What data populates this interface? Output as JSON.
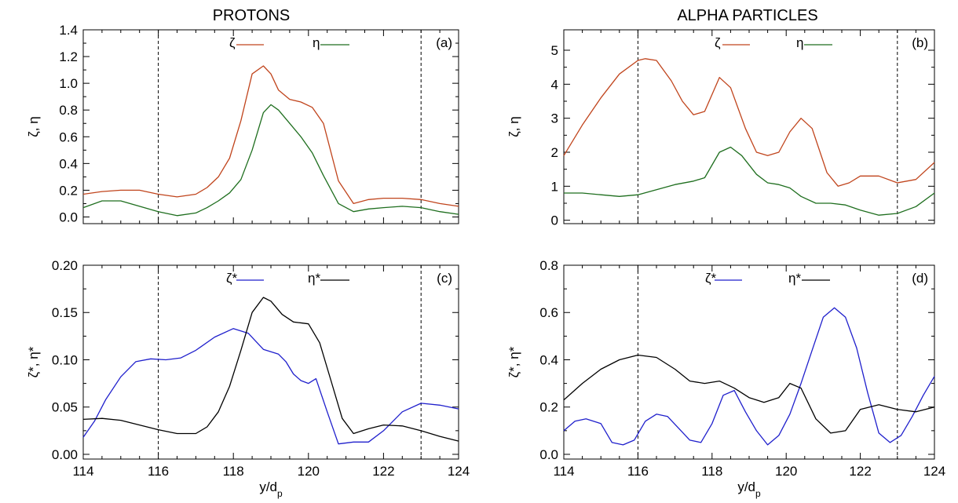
{
  "column_titles": {
    "left": "PROTONS",
    "right": "ALPHA PARTICLES"
  },
  "colors": {
    "zeta": "#c0441c",
    "eta": "#1e6e1e",
    "zeta_star": "#1f1fcc",
    "eta_star": "#000000"
  },
  "chart_data": [
    {
      "id": "a",
      "type": "line",
      "panel_label": "(a)",
      "ylabel": "ζ, η",
      "xlabel": "",
      "xlim": [
        114,
        124
      ],
      "ylim": [
        -0.05,
        1.4
      ],
      "yticks": [
        0.0,
        0.2,
        0.4,
        0.6,
        0.8,
        1.0,
        1.2,
        1.4
      ],
      "ytick_labels": [
        "0.0",
        "0.2",
        "0.4",
        "0.6",
        "0.8",
        "1.0",
        "1.2",
        "1.4"
      ],
      "xticks": [
        114,
        116,
        118,
        120,
        122,
        124
      ],
      "xtick_labels": [],
      "vlines": [
        116,
        123
      ],
      "grid": false,
      "legend": {
        "position": "top-center"
      },
      "series": [
        {
          "name": "ζ",
          "color": "#c0441c",
          "x": [
            114,
            114.5,
            115,
            115.5,
            116,
            116.5,
            117,
            117.3,
            117.6,
            117.9,
            118.2,
            118.5,
            118.8,
            119.0,
            119.2,
            119.5,
            119.8,
            120.1,
            120.4,
            120.8,
            121.2,
            121.6,
            122.0,
            122.5,
            123,
            123.5,
            124
          ],
          "y": [
            0.17,
            0.19,
            0.2,
            0.2,
            0.17,
            0.15,
            0.17,
            0.22,
            0.3,
            0.44,
            0.72,
            1.07,
            1.13,
            1.07,
            0.95,
            0.88,
            0.86,
            0.82,
            0.7,
            0.27,
            0.1,
            0.13,
            0.14,
            0.14,
            0.13,
            0.1,
            0.08
          ]
        },
        {
          "name": "η",
          "color": "#1e6e1e",
          "x": [
            114,
            114.5,
            115,
            115.5,
            116,
            116.5,
            117,
            117.3,
            117.6,
            117.9,
            118.2,
            118.5,
            118.8,
            119.0,
            119.2,
            119.5,
            119.8,
            120.1,
            120.4,
            120.8,
            121.2,
            121.6,
            122.0,
            122.5,
            123,
            123.5,
            124
          ],
          "y": [
            0.07,
            0.12,
            0.12,
            0.08,
            0.04,
            0.01,
            0.03,
            0.07,
            0.12,
            0.18,
            0.28,
            0.5,
            0.78,
            0.84,
            0.8,
            0.7,
            0.6,
            0.48,
            0.31,
            0.1,
            0.04,
            0.06,
            0.07,
            0.08,
            0.07,
            0.04,
            0.02
          ]
        }
      ]
    },
    {
      "id": "b",
      "type": "line",
      "panel_label": "(b)",
      "ylabel": "ζ, η",
      "xlabel": "",
      "xlim": [
        114,
        124
      ],
      "ylim": [
        -0.1,
        5.6
      ],
      "yticks": [
        0,
        1,
        2,
        3,
        4,
        5
      ],
      "ytick_labels": [
        "0",
        "1",
        "2",
        "3",
        "4",
        "5"
      ],
      "xticks": [
        114,
        116,
        118,
        120,
        122,
        124
      ],
      "xtick_labels": [],
      "vlines": [
        116,
        123
      ],
      "grid": false,
      "legend": {
        "position": "top-center"
      },
      "series": [
        {
          "name": "ζ",
          "color": "#c0441c",
          "x": [
            114,
            114.5,
            115,
            115.5,
            116,
            116.2,
            116.5,
            116.9,
            117.2,
            117.5,
            117.8,
            118.2,
            118.5,
            118.9,
            119.2,
            119.5,
            119.8,
            120.1,
            120.4,
            120.7,
            121.1,
            121.4,
            121.7,
            122.0,
            122.5,
            123,
            123.5,
            124
          ],
          "y": [
            1.9,
            2.8,
            3.6,
            4.3,
            4.7,
            4.75,
            4.7,
            4.1,
            3.5,
            3.1,
            3.2,
            4.2,
            3.9,
            2.7,
            2.0,
            1.9,
            2.0,
            2.6,
            3.0,
            2.7,
            1.4,
            1.0,
            1.1,
            1.3,
            1.3,
            1.1,
            1.2,
            1.7
          ]
        },
        {
          "name": "η",
          "color": "#1e6e1e",
          "x": [
            114,
            114.5,
            115,
            115.5,
            116,
            116.5,
            117,
            117.5,
            117.8,
            118.2,
            118.5,
            118.8,
            119.2,
            119.5,
            119.8,
            120.1,
            120.4,
            120.8,
            121.2,
            121.6,
            122.0,
            122.5,
            123,
            123.5,
            124
          ],
          "y": [
            0.8,
            0.8,
            0.75,
            0.7,
            0.75,
            0.9,
            1.05,
            1.15,
            1.25,
            2.0,
            2.15,
            1.9,
            1.35,
            1.1,
            1.05,
            0.95,
            0.7,
            0.5,
            0.5,
            0.45,
            0.3,
            0.15,
            0.2,
            0.4,
            0.8
          ]
        }
      ]
    },
    {
      "id": "c",
      "type": "line",
      "panel_label": "(c)",
      "ylabel": "ζ*, η*",
      "xlabel": "y/dp",
      "xlim": [
        114,
        124
      ],
      "ylim": [
        -0.005,
        0.2
      ],
      "yticks": [
        0.0,
        0.05,
        0.1,
        0.15,
        0.2
      ],
      "ytick_labels": [
        "0.00",
        "0.05",
        "0.10",
        "0.15",
        "0.20"
      ],
      "xticks": [
        114,
        116,
        118,
        120,
        122,
        124
      ],
      "xtick_labels": [
        "114",
        "116",
        "118",
        "120",
        "122",
        "124"
      ],
      "vlines": [
        116,
        123
      ],
      "grid": false,
      "legend": {
        "position": "top-center"
      },
      "series": [
        {
          "name": "ζ*",
          "color": "#1f1fcc",
          "x": [
            114,
            114.3,
            114.6,
            115.0,
            115.4,
            115.8,
            116.2,
            116.6,
            117.0,
            117.5,
            118.0,
            118.4,
            118.8,
            119.2,
            119.4,
            119.6,
            119.8,
            120.0,
            120.2,
            120.5,
            120.8,
            121.2,
            121.6,
            122.0,
            122.5,
            123.0,
            123.5,
            124
          ],
          "y": [
            0.018,
            0.035,
            0.058,
            0.082,
            0.098,
            0.101,
            0.1,
            0.102,
            0.11,
            0.124,
            0.133,
            0.128,
            0.111,
            0.106,
            0.098,
            0.085,
            0.078,
            0.075,
            0.08,
            0.045,
            0.011,
            0.013,
            0.013,
            0.025,
            0.045,
            0.054,
            0.052,
            0.048
          ]
        },
        {
          "name": "η*",
          "color": "#000000",
          "x": [
            114,
            114.5,
            115,
            115.5,
            116,
            116.5,
            117,
            117.3,
            117.6,
            117.9,
            118.2,
            118.5,
            118.8,
            119.0,
            119.3,
            119.6,
            120.0,
            120.3,
            120.6,
            120.9,
            121.2,
            121.6,
            122.0,
            122.5,
            123,
            123.5,
            124
          ],
          "y": [
            0.037,
            0.038,
            0.036,
            0.031,
            0.026,
            0.022,
            0.022,
            0.029,
            0.045,
            0.072,
            0.11,
            0.15,
            0.166,
            0.162,
            0.148,
            0.14,
            0.138,
            0.118,
            0.078,
            0.038,
            0.022,
            0.027,
            0.031,
            0.03,
            0.025,
            0.019,
            0.014
          ]
        }
      ]
    },
    {
      "id": "d",
      "type": "line",
      "panel_label": "(d)",
      "ylabel": "ζ*, η*",
      "xlabel": "y/dp",
      "xlim": [
        114,
        124
      ],
      "ylim": [
        -0.02,
        0.8
      ],
      "yticks": [
        0.0,
        0.2,
        0.4,
        0.6,
        0.8
      ],
      "ytick_labels": [
        "0.0",
        "0.2",
        "0.4",
        "0.6",
        "0.8"
      ],
      "xticks": [
        114,
        116,
        118,
        120,
        122,
        124
      ],
      "xtick_labels": [
        "114",
        "116",
        "118",
        "120",
        "122",
        "124"
      ],
      "vlines": [
        116,
        123
      ],
      "grid": false,
      "legend": {
        "position": "top-center"
      },
      "series": [
        {
          "name": "ζ*",
          "color": "#1f1fcc",
          "x": [
            114,
            114.3,
            114.6,
            115.0,
            115.3,
            115.6,
            115.9,
            116.2,
            116.5,
            116.8,
            117.1,
            117.4,
            117.7,
            118.0,
            118.3,
            118.6,
            118.9,
            119.2,
            119.5,
            119.8,
            120.1,
            120.4,
            120.7,
            121.0,
            121.3,
            121.6,
            121.9,
            122.2,
            122.5,
            122.8,
            123.1,
            123.4,
            123.7,
            124
          ],
          "y": [
            0.1,
            0.14,
            0.15,
            0.13,
            0.05,
            0.04,
            0.06,
            0.14,
            0.17,
            0.16,
            0.11,
            0.06,
            0.05,
            0.13,
            0.25,
            0.27,
            0.18,
            0.1,
            0.04,
            0.08,
            0.17,
            0.3,
            0.44,
            0.58,
            0.62,
            0.58,
            0.45,
            0.26,
            0.09,
            0.05,
            0.08,
            0.16,
            0.25,
            0.33
          ]
        },
        {
          "name": "η*",
          "color": "#000000",
          "x": [
            114,
            114.5,
            115,
            115.5,
            116,
            116.5,
            117,
            117.4,
            117.8,
            118.2,
            118.6,
            119.0,
            119.4,
            119.8,
            120.1,
            120.4,
            120.8,
            121.2,
            121.6,
            122.0,
            122.5,
            123,
            123.5,
            124
          ],
          "y": [
            0.23,
            0.3,
            0.36,
            0.4,
            0.42,
            0.41,
            0.36,
            0.31,
            0.3,
            0.31,
            0.28,
            0.24,
            0.22,
            0.24,
            0.3,
            0.28,
            0.15,
            0.09,
            0.1,
            0.19,
            0.21,
            0.19,
            0.18,
            0.2
          ]
        }
      ]
    }
  ]
}
